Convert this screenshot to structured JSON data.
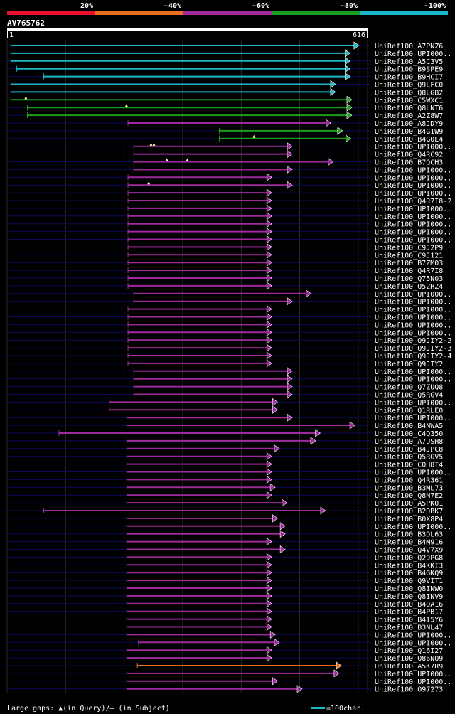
{
  "chart_data": {
    "type": "alignment-overview",
    "query_name": "AV765762",
    "query_length": 616,
    "axis_start_label": "1",
    "axis_end_label": "616",
    "identity_legend": [
      {
        "label": "20%",
        "color": "#e8102c"
      },
      {
        "label": "~40%",
        "color": "#e8701c"
      },
      {
        "label": "~60%",
        "color": "#9e2b9e"
      },
      {
        "label": "~80%",
        "color": "#1c9e1c"
      },
      {
        "label": "~100%",
        "color": "#1cb8c8"
      }
    ],
    "footer": {
      "gaps_text": "Large gaps: ▲(in Query)/— (in Subject)",
      "scale_text": "=100char."
    },
    "hits": [
      {
        "name": "UniRef100_A7PNZ6",
        "start": 6,
        "end": 600,
        "color": "#1cb8c8",
        "gapsQ": [],
        "gapsS": []
      },
      {
        "name": "UniRef100_UPI000..",
        "start": 6,
        "end": 585,
        "color": "#1cb8c8",
        "gapsQ": [],
        "gapsS": []
      },
      {
        "name": "UniRef100_A5C3V5",
        "start": 6,
        "end": 585,
        "color": "#1cb8c8",
        "gapsQ": [],
        "gapsS": []
      },
      {
        "name": "UniRef100_B9SPE9",
        "start": 16,
        "end": 585,
        "color": "#1cb8c8",
        "gapsQ": [],
        "gapsS": []
      },
      {
        "name": "UniRef100_B9HCI7",
        "start": 62,
        "end": 585,
        "color": "#1cb8c8",
        "gapsQ": [],
        "gapsS": []
      },
      {
        "name": "UniRef100_Q9LFC0",
        "start": 6,
        "end": 560,
        "color": "#1cb8c8",
        "gapsQ": [],
        "gapsS": []
      },
      {
        "name": "UniRef100_Q8LGB2",
        "start": 6,
        "end": 560,
        "color": "#1cb8c8",
        "gapsQ": [],
        "gapsS": []
      },
      {
        "name": "UniRef100_C5WXC1",
        "start": 6,
        "end": 588,
        "color": "#1c9e1c",
        "gapsQ": [
          32
        ],
        "gapsS": []
      },
      {
        "name": "UniRef100_Q8LNT6",
        "start": 34,
        "end": 588,
        "color": "#1c9e1c",
        "gapsQ": [
          204
        ],
        "gapsS": []
      },
      {
        "name": "UniRef100_A2Z8W7",
        "start": 34,
        "end": 588,
        "color": "#1c9e1c",
        "gapsQ": [],
        "gapsS": []
      },
      {
        "name": "UniRef100_A8JDY9",
        "start": 206,
        "end": 552,
        "color": "#9e2b9e",
        "gapsQ": [],
        "gapsS": []
      },
      {
        "name": "UniRef100_B4G1W9",
        "start": 362,
        "end": 572,
        "color": "#1c9e1c",
        "gapsQ": [],
        "gapsS": []
      },
      {
        "name": "UniRef100_B4G0L4",
        "start": 362,
        "end": 586,
        "color": "#1c9e1c",
        "gapsQ": [
          422
        ],
        "gapsS": []
      },
      {
        "name": "UniRef100_UPI000..",
        "start": 216,
        "end": 486,
        "color": "#9e2b9e",
        "gapsQ": [
          246,
          251
        ],
        "gapsS": []
      },
      {
        "name": "UniRef100_Q4RC92",
        "start": 216,
        "end": 486,
        "color": "#9e2b9e",
        "gapsQ": [],
        "gapsS": []
      },
      {
        "name": "UniRef100_B7QCH3",
        "start": 216,
        "end": 556,
        "color": "#9e2b9e",
        "gapsQ": [
          273,
          308
        ],
        "gapsS": []
      },
      {
        "name": "UniRef100_UPI000..",
        "start": 216,
        "end": 486,
        "color": "#9e2b9e",
        "gapsQ": [],
        "gapsS": []
      },
      {
        "name": "UniRef100_UPI000..",
        "start": 206,
        "end": 451,
        "color": "#9e2b9e",
        "gapsQ": [],
        "gapsS": []
      },
      {
        "name": "UniRef100_UPI000..",
        "start": 206,
        "end": 486,
        "color": "#9e2b9e",
        "gapsQ": [
          242
        ],
        "gapsS": []
      },
      {
        "name": "UniRef100_UPI000..",
        "start": 206,
        "end": 451,
        "color": "#9e2b9e",
        "gapsQ": [],
        "gapsS": []
      },
      {
        "name": "UniRef100_Q4R7I8-2",
        "start": 206,
        "end": 451,
        "color": "#9e2b9e",
        "gapsQ": [],
        "gapsS": []
      },
      {
        "name": "UniRef100_UPI000..",
        "start": 206,
        "end": 451,
        "color": "#9e2b9e",
        "gapsQ": [],
        "gapsS": []
      },
      {
        "name": "UniRef100_UPI000..",
        "start": 206,
        "end": 451,
        "color": "#9e2b9e",
        "gapsQ": [],
        "gapsS": []
      },
      {
        "name": "UniRef100_UPI000..",
        "start": 206,
        "end": 451,
        "color": "#9e2b9e",
        "gapsQ": [],
        "gapsS": []
      },
      {
        "name": "UniRef100_UPI000..",
        "start": 206,
        "end": 451,
        "color": "#9e2b9e",
        "gapsQ": [],
        "gapsS": []
      },
      {
        "name": "UniRef100_UPI000..",
        "start": 206,
        "end": 451,
        "color": "#9e2b9e",
        "gapsQ": [],
        "gapsS": []
      },
      {
        "name": "UniRef100_C9J2P9",
        "start": 206,
        "end": 451,
        "color": "#9e2b9e",
        "gapsQ": [],
        "gapsS": []
      },
      {
        "name": "UniRef100_C9J121",
        "start": 206,
        "end": 451,
        "color": "#9e2b9e",
        "gapsQ": [],
        "gapsS": []
      },
      {
        "name": "UniRef100_B7ZM03",
        "start": 206,
        "end": 451,
        "color": "#9e2b9e",
        "gapsQ": [],
        "gapsS": []
      },
      {
        "name": "UniRef100_Q4R7I8",
        "start": 206,
        "end": 451,
        "color": "#9e2b9e",
        "gapsQ": [],
        "gapsS": []
      },
      {
        "name": "UniRef100_Q75N03",
        "start": 206,
        "end": 451,
        "color": "#9e2b9e",
        "gapsQ": [],
        "gapsS": []
      },
      {
        "name": "UniRef100_Q52HZ4",
        "start": 206,
        "end": 451,
        "color": "#9e2b9e",
        "gapsQ": [],
        "gapsS": []
      },
      {
        "name": "UniRef100_UPI000..",
        "start": 216,
        "end": 518,
        "color": "#9e2b9e",
        "gapsQ": [],
        "gapsS": []
      },
      {
        "name": "UniRef100_UPI000..",
        "start": 216,
        "end": 486,
        "color": "#9e2b9e",
        "gapsQ": [],
        "gapsS": []
      },
      {
        "name": "UniRef100_UPI000..",
        "start": 206,
        "end": 451,
        "color": "#9e2b9e",
        "gapsQ": [],
        "gapsS": []
      },
      {
        "name": "UniRef100_UPI000..",
        "start": 206,
        "end": 451,
        "color": "#9e2b9e",
        "gapsQ": [],
        "gapsS": []
      },
      {
        "name": "UniRef100_UPI000..",
        "start": 206,
        "end": 451,
        "color": "#9e2b9e",
        "gapsQ": [],
        "gapsS": []
      },
      {
        "name": "UniRef100_UPI000..",
        "start": 206,
        "end": 451,
        "color": "#9e2b9e",
        "gapsQ": [],
        "gapsS": []
      },
      {
        "name": "UniRef100_Q9JIY2-2",
        "start": 206,
        "end": 451,
        "color": "#9e2b9e",
        "gapsQ": [],
        "gapsS": []
      },
      {
        "name": "UniRef100_Q9JIY2-3",
        "start": 206,
        "end": 451,
        "color": "#9e2b9e",
        "gapsQ": [],
        "gapsS": []
      },
      {
        "name": "UniRef100_Q9JIY2-4",
        "start": 206,
        "end": 451,
        "color": "#9e2b9e",
        "gapsQ": [],
        "gapsS": []
      },
      {
        "name": "UniRef100_Q9JIY2",
        "start": 206,
        "end": 451,
        "color": "#9e2b9e",
        "gapsQ": [],
        "gapsS": []
      },
      {
        "name": "UniRef100_UPI000..",
        "start": 216,
        "end": 486,
        "color": "#9e2b9e",
        "gapsQ": [],
        "gapsS": []
      },
      {
        "name": "UniRef100_UPI000..",
        "start": 216,
        "end": 486,
        "color": "#9e2b9e",
        "gapsQ": [],
        "gapsS": []
      },
      {
        "name": "UniRef100_Q7ZUQ8",
        "start": 216,
        "end": 486,
        "color": "#9e2b9e",
        "gapsQ": [],
        "gapsS": []
      },
      {
        "name": "UniRef100_Q5RGV4",
        "start": 216,
        "end": 486,
        "color": "#9e2b9e",
        "gapsQ": [],
        "gapsS": []
      },
      {
        "name": "UniRef100_UPI000..",
        "start": 174,
        "end": 461,
        "color": "#9e2b9e",
        "gapsQ": [],
        "gapsS": []
      },
      {
        "name": "UniRef100_Q1RLE0",
        "start": 174,
        "end": 461,
        "color": "#9e2b9e",
        "gapsQ": [],
        "gapsS": []
      },
      {
        "name": "UniRef100_UPI000..",
        "start": 204,
        "end": 486,
        "color": "#9e2b9e",
        "gapsQ": [],
        "gapsS": []
      },
      {
        "name": "UniRef100_B4NWA5",
        "start": 204,
        "end": 593,
        "color": "#9e2b9e",
        "gapsQ": [],
        "gapsS": []
      },
      {
        "name": "UniRef100_C4Q350",
        "start": 88,
        "end": 534,
        "color": "#9e2b9e",
        "gapsQ": [],
        "gapsS": []
      },
      {
        "name": "UniRef100_A7USH8",
        "start": 204,
        "end": 526,
        "color": "#9e2b9e",
        "gapsQ": [],
        "gapsS": []
      },
      {
        "name": "UniRef100_B4JPC8",
        "start": 204,
        "end": 464,
        "color": "#9e2b9e",
        "gapsQ": [],
        "gapsS": []
      },
      {
        "name": "UniRef100_Q5RGV5",
        "start": 204,
        "end": 451,
        "color": "#9e2b9e",
        "gapsQ": [],
        "gapsS": []
      },
      {
        "name": "UniRef100_C0H8T4",
        "start": 204,
        "end": 451,
        "color": "#9e2b9e",
        "gapsQ": [],
        "gapsS": []
      },
      {
        "name": "UniRef100_UPI000..",
        "start": 204,
        "end": 451,
        "color": "#9e2b9e",
        "gapsQ": [],
        "gapsS": []
      },
      {
        "name": "UniRef100_Q4R361",
        "start": 204,
        "end": 451,
        "color": "#9e2b9e",
        "gapsQ": [],
        "gapsS": []
      },
      {
        "name": "UniRef100_B3ML73",
        "start": 204,
        "end": 457,
        "color": "#9e2b9e",
        "gapsQ": [],
        "gapsS": []
      },
      {
        "name": "UniRef100_Q8N7E2",
        "start": 204,
        "end": 451,
        "color": "#9e2b9e",
        "gapsQ": [],
        "gapsS": []
      },
      {
        "name": "UniRef100_A5PK01",
        "start": 204,
        "end": 477,
        "color": "#9e2b9e",
        "gapsQ": [],
        "gapsS": []
      },
      {
        "name": "UniRef100_B2DBK7",
        "start": 62,
        "end": 543,
        "color": "#9e2b9e",
        "gapsQ": [],
        "gapsS": []
      },
      {
        "name": "UniRef100_B0X8P4",
        "start": 204,
        "end": 461,
        "color": "#9e2b9e",
        "gapsQ": [],
        "gapsS": []
      },
      {
        "name": "UniRef100_UPI000..",
        "start": 204,
        "end": 474,
        "color": "#9e2b9e",
        "gapsQ": [],
        "gapsS": []
      },
      {
        "name": "UniRef100_B3DL63",
        "start": 204,
        "end": 474,
        "color": "#9e2b9e",
        "gapsQ": [],
        "gapsS": []
      },
      {
        "name": "UniRef100_B4M916",
        "start": 204,
        "end": 451,
        "color": "#9e2b9e",
        "gapsQ": [],
        "gapsS": []
      },
      {
        "name": "UniRef100_Q4V7X9",
        "start": 204,
        "end": 474,
        "color": "#9e2b9e",
        "gapsQ": [],
        "gapsS": []
      },
      {
        "name": "UniRef100_Q29PG8",
        "start": 204,
        "end": 451,
        "color": "#9e2b9e",
        "gapsQ": [],
        "gapsS": []
      },
      {
        "name": "UniRef100_B4KKI3",
        "start": 204,
        "end": 451,
        "color": "#9e2b9e",
        "gapsQ": [],
        "gapsS": []
      },
      {
        "name": "UniRef100_B4GKQ9",
        "start": 204,
        "end": 451,
        "color": "#9e2b9e",
        "gapsQ": [],
        "gapsS": []
      },
      {
        "name": "UniRef100_Q9VIT1",
        "start": 204,
        "end": 451,
        "color": "#9e2b9e",
        "gapsQ": [],
        "gapsS": []
      },
      {
        "name": "UniRef100_Q8INW0",
        "start": 204,
        "end": 451,
        "color": "#9e2b9e",
        "gapsQ": [],
        "gapsS": []
      },
      {
        "name": "UniRef100_Q8INV9",
        "start": 204,
        "end": 451,
        "color": "#9e2b9e",
        "gapsQ": [],
        "gapsS": []
      },
      {
        "name": "UniRef100_B4QA16",
        "start": 204,
        "end": 451,
        "color": "#9e2b9e",
        "gapsQ": [],
        "gapsS": []
      },
      {
        "name": "UniRef100_B4PB17",
        "start": 204,
        "end": 451,
        "color": "#9e2b9e",
        "gapsQ": [],
        "gapsS": []
      },
      {
        "name": "UniRef100_B4I5Y6",
        "start": 204,
        "end": 451,
        "color": "#9e2b9e",
        "gapsQ": [],
        "gapsS": []
      },
      {
        "name": "UniRef100_B3NL47",
        "start": 204,
        "end": 451,
        "color": "#9e2b9e",
        "gapsQ": [],
        "gapsS": []
      },
      {
        "name": "UniRef100_UPI000..",
        "start": 204,
        "end": 457,
        "color": "#9e2b9e",
        "gapsQ": [],
        "gapsS": []
      },
      {
        "name": "UniRef100_UPI000..",
        "start": 224,
        "end": 464,
        "color": "#9e2b9e",
        "gapsQ": [],
        "gapsS": []
      },
      {
        "name": "UniRef100_Q16I27",
        "start": 204,
        "end": 451,
        "color": "#9e2b9e",
        "gapsQ": [],
        "gapsS": []
      },
      {
        "name": "UniRef100_Q86NQ9",
        "start": 204,
        "end": 451,
        "color": "#9e2b9e",
        "gapsQ": [],
        "gapsS": []
      },
      {
        "name": "UniRef100_A5K7R9",
        "start": 222,
        "end": 570,
        "color": "#e8701c",
        "gapsQ": [],
        "gapsS": []
      },
      {
        "name": "UniRef100_UPI000..",
        "start": 204,
        "end": 566,
        "color": "#9e2b9e",
        "gapsQ": [],
        "gapsS": []
      },
      {
        "name": "UniRef100_UPI000..",
        "start": 204,
        "end": 461,
        "color": "#9e2b9e",
        "gapsQ": [],
        "gapsS": []
      },
      {
        "name": "UniRef100_O97273",
        "start": 204,
        "end": 503,
        "color": "#9e2b9e",
        "gapsQ": [],
        "gapsS": []
      }
    ]
  }
}
